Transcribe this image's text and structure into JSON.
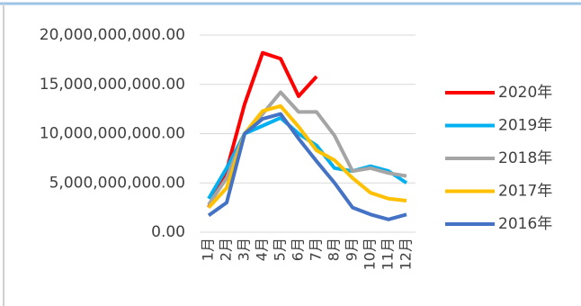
{
  "chart_data": {
    "type": "line",
    "categories": [
      "1月",
      "2月",
      "3月",
      "4月",
      "5月",
      "6月",
      "7月",
      "8月",
      "9月",
      "10月",
      "11月",
      "12月"
    ],
    "series": [
      {
        "name": "2020年",
        "color": "#ff0000",
        "values": [
          2500000000,
          6300000000,
          13000000000,
          18200000000,
          17600000000,
          13800000000,
          15800000000,
          null,
          null,
          null,
          null,
          null
        ]
      },
      {
        "name": "2019年",
        "color": "#00b0f0",
        "values": [
          3400000000,
          6500000000,
          10000000000,
          10800000000,
          11600000000,
          10000000000,
          8800000000,
          6500000000,
          6200000000,
          6700000000,
          6200000000,
          5000000000
        ]
      },
      {
        "name": "2018年",
        "color": "#a5a5a5",
        "values": [
          2800000000,
          5500000000,
          10000000000,
          12000000000,
          14200000000,
          12200000000,
          12200000000,
          9800000000,
          6200000000,
          6500000000,
          6000000000,
          5700000000
        ]
      },
      {
        "name": "2017年",
        "color": "#ffc000",
        "values": [
          2500000000,
          4500000000,
          10000000000,
          12300000000,
          12800000000,
          10700000000,
          8300000000,
          7300000000,
          5500000000,
          4000000000,
          3400000000,
          3200000000
        ]
      },
      {
        "name": "2016年",
        "color": "#4472c4",
        "values": [
          1700000000,
          3000000000,
          10000000000,
          11500000000,
          12000000000,
          9500000000,
          7200000000,
          5000000000,
          2500000000,
          1800000000,
          1300000000,
          1800000000
        ]
      }
    ],
    "ylim": [
      0,
      20000000000
    ],
    "yticks": [
      {
        "value": 0,
        "label": "0.00"
      },
      {
        "value": 5000000000,
        "label": "5,000,000,000.00"
      },
      {
        "value": 10000000000,
        "label": "10,000,000,000.00"
      },
      {
        "value": 15000000000,
        "label": "15,000,000,000.00"
      },
      {
        "value": 20000000000,
        "label": "20,000,000,000.00"
      }
    ],
    "grid": true,
    "legend": "right"
  }
}
